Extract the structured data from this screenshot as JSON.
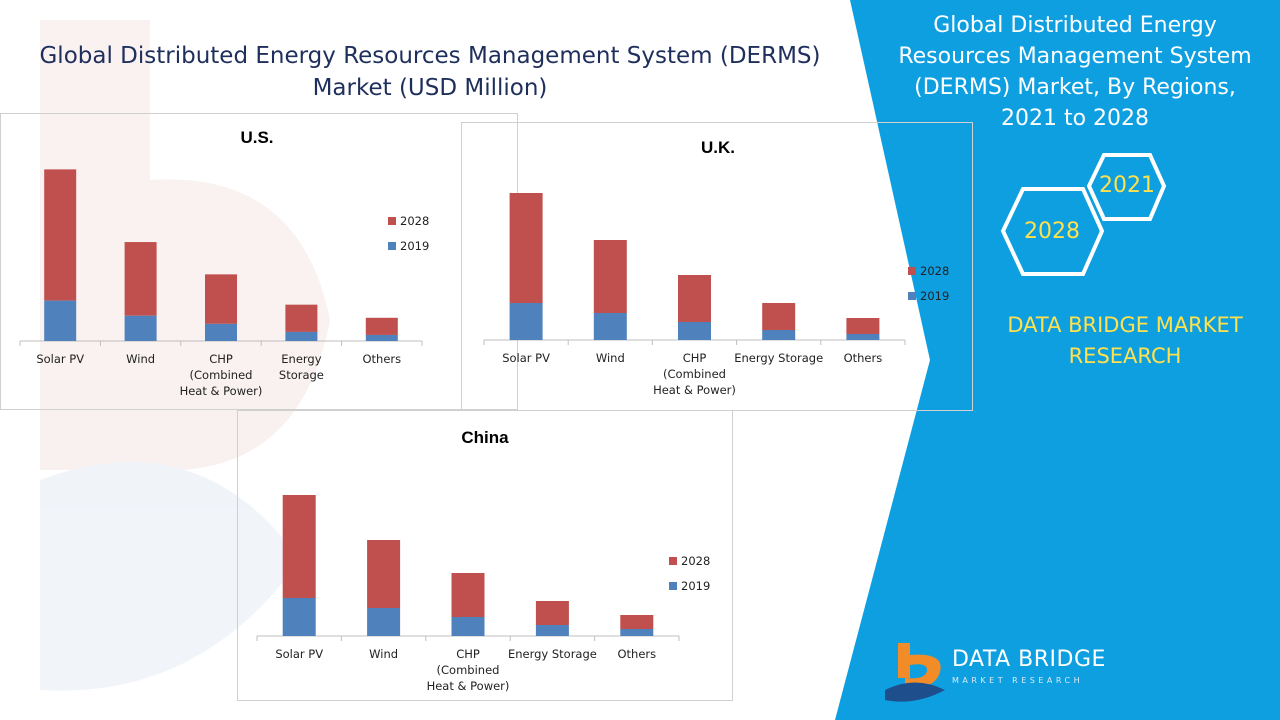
{
  "page": {
    "title": "Global Distributed Energy Resources Management System (DERMS) Market (USD Million)",
    "right_title": "Global Distributed Energy Resources Management System (DERMS) Market, By Regions, 2021 to 2028",
    "hex_years": [
      "2021",
      "2028"
    ],
    "brand": "DATA BRIDGE MARKET RESEARCH",
    "logo_name": "DATA BRIDGE",
    "logo_tagline": "MARKET RESEARCH",
    "colors": {
      "accent_blue": "#0e9fe0",
      "series_2028": "#c0504d",
      "series_2019": "#4f81bd",
      "brand_yellow": "#ffe14d",
      "title_navy": "#1f2f5c"
    }
  },
  "chart_data": [
    {
      "type": "bar",
      "stacked": true,
      "title": "U.S.",
      "categories": [
        "Solar PV",
        "Wind",
        "CHP (Combined Heat & Power)",
        "Energy Storage",
        "Others"
      ],
      "category_lines": [
        [
          "Solar PV"
        ],
        [
          "Wind"
        ],
        [
          "CHP",
          "(Combined",
          "Heat & Power)"
        ],
        [
          "Energy",
          "Storage"
        ],
        [
          "Others"
        ]
      ],
      "series": [
        {
          "name": "2019",
          "values": [
            40,
            25,
            17,
            9,
            6
          ]
        },
        {
          "name": "2028",
          "values": [
            170,
            98,
            66,
            36,
            23
          ]
        }
      ],
      "ylim": [
        0,
        210
      ],
      "legend": "right"
    },
    {
      "type": "bar",
      "stacked": true,
      "title": "U.K.",
      "categories": [
        "Solar PV",
        "Wind",
        "CHP (Combined Heat & Power)",
        "Energy Storage",
        "Others"
      ],
      "category_lines": [
        [
          "Solar PV"
        ],
        [
          "Wind"
        ],
        [
          "CHP",
          "(Combined",
          "Heat & Power)"
        ],
        [
          "Energy Storage"
        ],
        [
          "Others"
        ]
      ],
      "series": [
        {
          "name": "2019",
          "values": [
            37,
            27,
            18,
            10,
            6
          ]
        },
        {
          "name": "2028",
          "values": [
            147,
            100,
            65,
            37,
            22
          ]
        }
      ],
      "ylim": [
        0,
        184
      ],
      "legend": "right"
    },
    {
      "type": "bar",
      "stacked": true,
      "title": "China",
      "categories": [
        "Solar PV",
        "Wind",
        "CHP (Combined Heat & Power)",
        "Energy Storage",
        "Others"
      ],
      "category_lines": [
        [
          "Solar PV"
        ],
        [
          "Wind"
        ],
        [
          "CHP",
          "(Combined",
          "Heat & Power)"
        ],
        [
          "Energy Storage"
        ],
        [
          "Others"
        ]
      ],
      "series": [
        {
          "name": "2019",
          "values": [
            38,
            28,
            19,
            11,
            7
          ]
        },
        {
          "name": "2028",
          "values": [
            141,
            96,
            63,
            35,
            21
          ]
        }
      ],
      "ylim": [
        0,
        179
      ],
      "legend": "right"
    }
  ]
}
